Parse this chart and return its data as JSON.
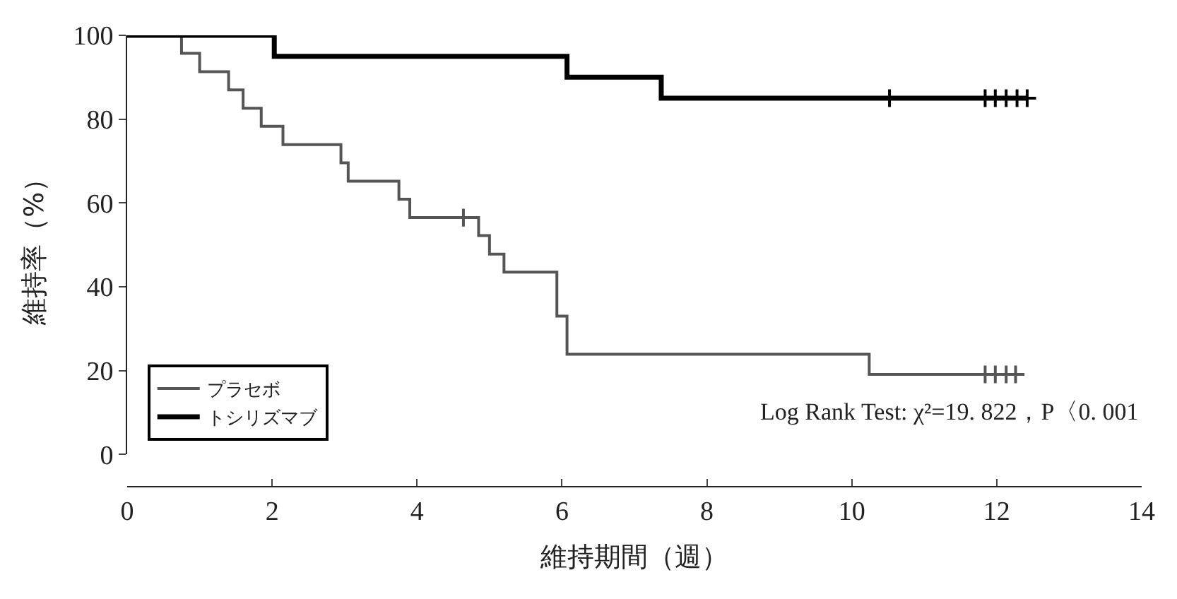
{
  "chart_data": {
    "type": "step",
    "xlabel": "維持期間（週）",
    "ylabel": "維持率（%）",
    "xlim": [
      0,
      14
    ],
    "xticks": [
      0,
      2,
      4,
      6,
      8,
      10,
      12,
      14
    ],
    "ylim": [
      0,
      100
    ],
    "yticks": [
      0,
      20,
      40,
      60,
      80,
      100
    ],
    "legend": "bottom left",
    "marker": "none",
    "series": [
      {
        "name": "プラセボ",
        "color": "#555555",
        "x": [
          0,
          0.75,
          1.0,
          1.4,
          1.6,
          1.85,
          2.15,
          2.95,
          3.05,
          3.75,
          3.9,
          4.85,
          5.0,
          5.2,
          5.93,
          6.07,
          10.24,
          12.3
        ],
        "values": [
          100,
          95.7,
          91.3,
          87.0,
          82.6,
          78.3,
          73.9,
          69.6,
          65.2,
          60.9,
          56.5,
          52.2,
          47.8,
          43.5,
          33,
          23.9,
          19.1,
          19.1
        ]
      },
      {
        "name": "トシリズマブ",
        "color": "#000000",
        "x": [
          0,
          2.03,
          6.07,
          7.37,
          12.42
        ],
        "values": [
          100,
          95,
          90,
          85,
          85
        ]
      },
      {
        "type": "scatter",
        "marker": "cross",
        "color": "#555555",
        "x": [
          4.64,
          11.84,
          11.98,
          12.13,
          12.26
        ],
        "values": [
          56.5,
          19.1,
          19.1,
          19.1,
          19.1
        ]
      },
      {
        "type": "scatter",
        "marker": "cross",
        "color": "#000000",
        "x": [
          10.52,
          11.84,
          11.98,
          12.13,
          12.28,
          12.42
        ],
        "values": [
          85,
          85,
          85,
          85,
          85,
          85
        ]
      }
    ],
    "annotations": [
      "Log Rank Test: χ²=19. 822，P〈0. 001"
    ]
  }
}
